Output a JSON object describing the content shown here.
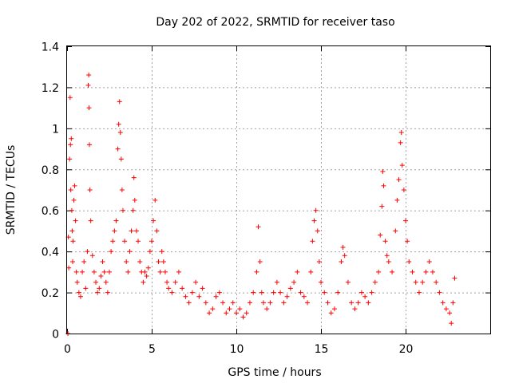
{
  "chart_data": {
    "type": "scatter",
    "title": "Day 202 of 2022, SRMTID for receiver taso",
    "xlabel": "GPS time / hours",
    "ylabel": "SRMTID / TECUs",
    "xlim": [
      0,
      25
    ],
    "ylim": [
      0,
      1.4
    ],
    "x_ticks": [
      0,
      5,
      10,
      15,
      20
    ],
    "x_tick_labels": [
      "0",
      "5",
      "10",
      "15",
      "20"
    ],
    "y_ticks": [
      0,
      0.2,
      0.4,
      0.6,
      0.8,
      1.0,
      1.2,
      1.4
    ],
    "y_tick_labels": [
      "0",
      "0.2",
      "0.4",
      "0.6",
      "0.8",
      "1",
      "1.2",
      "1.4"
    ],
    "grid": true,
    "marker": "+",
    "color": "#ff0000",
    "series": [
      {
        "name": "SRMTID",
        "points": [
          [
            0.05,
            0.0
          ],
          [
            0.08,
            0.47
          ],
          [
            0.1,
            0.32
          ],
          [
            0.15,
            0.85
          ],
          [
            0.18,
            1.15
          ],
          [
            0.2,
            0.92
          ],
          [
            0.22,
            0.7
          ],
          [
            0.25,
            0.95
          ],
          [
            0.28,
            0.6
          ],
          [
            0.3,
            0.5
          ],
          [
            0.33,
            0.35
          ],
          [
            0.35,
            0.45
          ],
          [
            0.4,
            0.65
          ],
          [
            0.45,
            0.72
          ],
          [
            0.5,
            0.55
          ],
          [
            0.55,
            0.3
          ],
          [
            0.6,
            0.25
          ],
          [
            0.7,
            0.2
          ],
          [
            0.8,
            0.18
          ],
          [
            0.9,
            0.3
          ],
          [
            1.0,
            0.35
          ],
          [
            1.1,
            0.22
          ],
          [
            1.2,
            0.4
          ],
          [
            1.25,
            1.21
          ],
          [
            1.28,
            1.26
          ],
          [
            1.3,
            1.1
          ],
          [
            1.32,
            0.92
          ],
          [
            1.35,
            0.7
          ],
          [
            1.4,
            0.55
          ],
          [
            1.5,
            0.38
          ],
          [
            1.6,
            0.3
          ],
          [
            1.7,
            0.25
          ],
          [
            1.8,
            0.2
          ],
          [
            1.9,
            0.22
          ],
          [
            2.0,
            0.28
          ],
          [
            2.1,
            0.35
          ],
          [
            2.2,
            0.3
          ],
          [
            2.3,
            0.25
          ],
          [
            2.4,
            0.2
          ],
          [
            2.5,
            0.3
          ],
          [
            2.6,
            0.4
          ],
          [
            2.7,
            0.45
          ],
          [
            2.8,
            0.5
          ],
          [
            2.9,
            0.55
          ],
          [
            3.0,
            0.9
          ],
          [
            3.05,
            1.02
          ],
          [
            3.1,
            1.13
          ],
          [
            3.15,
            0.98
          ],
          [
            3.2,
            0.85
          ],
          [
            3.25,
            0.7
          ],
          [
            3.3,
            0.6
          ],
          [
            3.4,
            0.45
          ],
          [
            3.5,
            0.35
          ],
          [
            3.6,
            0.3
          ],
          [
            3.7,
            0.4
          ],
          [
            3.8,
            0.5
          ],
          [
            3.9,
            0.6
          ],
          [
            3.95,
            0.76
          ],
          [
            4.0,
            0.65
          ],
          [
            4.1,
            0.5
          ],
          [
            4.2,
            0.45
          ],
          [
            4.3,
            0.35
          ],
          [
            4.4,
            0.3
          ],
          [
            4.5,
            0.25
          ],
          [
            4.6,
            0.3
          ],
          [
            4.7,
            0.28
          ],
          [
            4.8,
            0.32
          ],
          [
            4.9,
            0.4
          ],
          [
            5.0,
            0.45
          ],
          [
            5.1,
            0.55
          ],
          [
            5.2,
            0.65
          ],
          [
            5.3,
            0.5
          ],
          [
            5.4,
            0.35
          ],
          [
            5.5,
            0.3
          ],
          [
            5.6,
            0.4
          ],
          [
            5.7,
            0.35
          ],
          [
            5.8,
            0.3
          ],
          [
            5.9,
            0.25
          ],
          [
            6.0,
            0.22
          ],
          [
            6.2,
            0.2
          ],
          [
            6.4,
            0.25
          ],
          [
            6.6,
            0.3
          ],
          [
            6.8,
            0.22
          ],
          [
            7.0,
            0.18
          ],
          [
            7.2,
            0.15
          ],
          [
            7.4,
            0.2
          ],
          [
            7.6,
            0.25
          ],
          [
            7.8,
            0.18
          ],
          [
            8.0,
            0.22
          ],
          [
            8.2,
            0.15
          ],
          [
            8.4,
            0.1
          ],
          [
            8.6,
            0.12
          ],
          [
            8.8,
            0.18
          ],
          [
            9.0,
            0.2
          ],
          [
            9.2,
            0.15
          ],
          [
            9.4,
            0.1
          ],
          [
            9.6,
            0.12
          ],
          [
            9.8,
            0.15
          ],
          [
            10.0,
            0.1
          ],
          [
            10.2,
            0.12
          ],
          [
            10.4,
            0.08
          ],
          [
            10.6,
            0.1
          ],
          [
            10.8,
            0.15
          ],
          [
            11.0,
            0.2
          ],
          [
            11.2,
            0.3
          ],
          [
            11.3,
            0.52
          ],
          [
            11.4,
            0.35
          ],
          [
            11.5,
            0.2
          ],
          [
            11.6,
            0.15
          ],
          [
            11.8,
            0.12
          ],
          [
            12.0,
            0.15
          ],
          [
            12.2,
            0.2
          ],
          [
            12.4,
            0.25
          ],
          [
            12.6,
            0.2
          ],
          [
            12.8,
            0.15
          ],
          [
            13.0,
            0.18
          ],
          [
            13.2,
            0.22
          ],
          [
            13.4,
            0.25
          ],
          [
            13.6,
            0.3
          ],
          [
            13.8,
            0.2
          ],
          [
            14.0,
            0.18
          ],
          [
            14.2,
            0.15
          ],
          [
            14.4,
            0.3
          ],
          [
            14.5,
            0.45
          ],
          [
            14.6,
            0.55
          ],
          [
            14.7,
            0.6
          ],
          [
            14.8,
            0.5
          ],
          [
            14.9,
            0.35
          ],
          [
            15.0,
            0.25
          ],
          [
            15.2,
            0.2
          ],
          [
            15.4,
            0.15
          ],
          [
            15.6,
            0.1
          ],
          [
            15.8,
            0.12
          ],
          [
            16.0,
            0.2
          ],
          [
            16.2,
            0.35
          ],
          [
            16.3,
            0.42
          ],
          [
            16.4,
            0.38
          ],
          [
            16.6,
            0.25
          ],
          [
            16.8,
            0.15
          ],
          [
            17.0,
            0.12
          ],
          [
            17.2,
            0.15
          ],
          [
            17.4,
            0.2
          ],
          [
            17.6,
            0.18
          ],
          [
            17.8,
            0.15
          ],
          [
            18.0,
            0.2
          ],
          [
            18.2,
            0.25
          ],
          [
            18.4,
            0.3
          ],
          [
            18.5,
            0.48
          ],
          [
            18.6,
            0.62
          ],
          [
            18.65,
            0.79
          ],
          [
            18.7,
            0.72
          ],
          [
            18.8,
            0.45
          ],
          [
            18.9,
            0.38
          ],
          [
            19.0,
            0.35
          ],
          [
            19.2,
            0.3
          ],
          [
            19.4,
            0.5
          ],
          [
            19.5,
            0.65
          ],
          [
            19.6,
            0.75
          ],
          [
            19.7,
            0.93
          ],
          [
            19.75,
            0.98
          ],
          [
            19.8,
            0.82
          ],
          [
            19.9,
            0.7
          ],
          [
            20.0,
            0.55
          ],
          [
            20.1,
            0.45
          ],
          [
            20.2,
            0.35
          ],
          [
            20.4,
            0.3
          ],
          [
            20.6,
            0.25
          ],
          [
            20.8,
            0.2
          ],
          [
            21.0,
            0.25
          ],
          [
            21.2,
            0.3
          ],
          [
            21.4,
            0.35
          ],
          [
            21.6,
            0.3
          ],
          [
            21.8,
            0.25
          ],
          [
            22.0,
            0.2
          ],
          [
            22.2,
            0.15
          ],
          [
            22.4,
            0.12
          ],
          [
            22.6,
            0.1
          ],
          [
            22.7,
            0.05
          ],
          [
            22.8,
            0.15
          ],
          [
            22.9,
            0.27
          ]
        ]
      }
    ]
  }
}
